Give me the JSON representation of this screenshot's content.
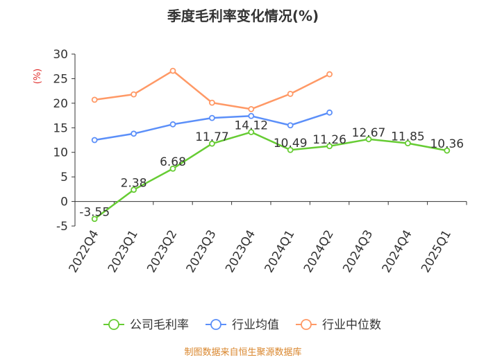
{
  "chart_data": {
    "type": "line",
    "title": "季度毛利率变化情况(%)",
    "ylabel": "(%)",
    "categories": [
      "2022Q4",
      "2023Q1",
      "2023Q2",
      "2023Q3",
      "2023Q4",
      "2024Q1",
      "2024Q2",
      "2024Q3",
      "2024Q4",
      "2025Q1"
    ],
    "ylim": [
      -5,
      30
    ],
    "yticks": [
      -5,
      0,
      5,
      10,
      15,
      20,
      25,
      30
    ],
    "series": [
      {
        "name": "公司毛利率",
        "color": "#66cc33",
        "values": [
          -3.55,
          2.38,
          6.68,
          11.77,
          14.12,
          10.49,
          11.26,
          12.67,
          11.85,
          10.36
        ],
        "labels": [
          "-3.55",
          "2.38",
          "6.68",
          "11.77",
          "14.12",
          "10.49",
          "11.26",
          "12.67",
          "11.85",
          "10.36"
        ]
      },
      {
        "name": "行业均值",
        "color": "#5b8ff9",
        "values": [
          12.5,
          13.8,
          15.7,
          17.0,
          17.4,
          15.5,
          18.1,
          null,
          null,
          null
        ]
      },
      {
        "name": "行业中位数",
        "color": "#ff9966",
        "values": [
          20.7,
          21.8,
          26.6,
          20.1,
          18.8,
          21.9,
          25.9,
          null,
          null,
          null
        ]
      }
    ],
    "legend_position": "bottom",
    "grid": false
  },
  "source": "制图数据来自恒生聚源数据库",
  "colors": {
    "title": "#333333",
    "axis": "#333333",
    "ylabel": "#e0302e",
    "source": "#d9852b"
  }
}
